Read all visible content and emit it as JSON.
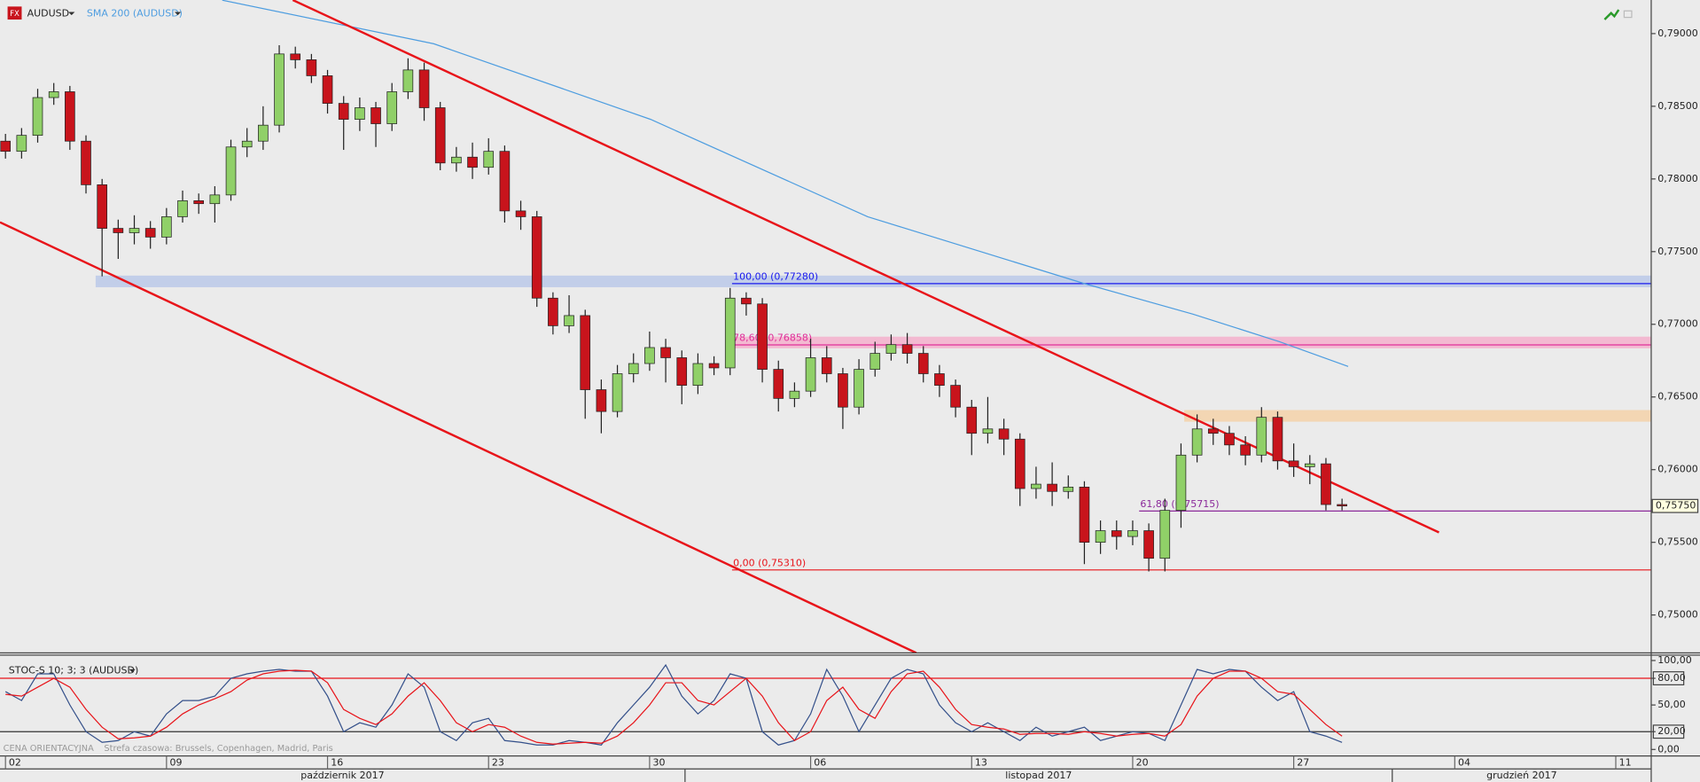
{
  "chart_data": [
    {
      "type": "candlestick",
      "title": "AUDUSD",
      "icon_text": "FX",
      "xlim": [
        -0.17,
        51.1
      ],
      "ylim": [
        0.74739,
        0.79231
      ],
      "yticks": [
        {
          "value": 0.75,
          "label": "0,75000"
        },
        {
          "value": 0.755,
          "label": "0,75500"
        },
        {
          "value": 0.76,
          "label": "0,76000"
        },
        {
          "value": 0.765,
          "label": "0,76500"
        },
        {
          "value": 0.77,
          "label": "0,77000"
        },
        {
          "value": 0.775,
          "label": "0,77500"
        },
        {
          "value": 0.78,
          "label": "0,78000"
        },
        {
          "value": 0.785,
          "label": "0,78500"
        },
        {
          "value": 0.79,
          "label": "0,79000"
        }
      ],
      "xticks": [
        {
          "value": 0,
          "label": "02"
        },
        {
          "value": 5,
          "label": "09"
        },
        {
          "value": 10,
          "label": "16"
        },
        {
          "value": 15,
          "label": "23"
        },
        {
          "value": 20,
          "label": "30"
        },
        {
          "value": 25,
          "label": "06"
        },
        {
          "value": 30,
          "label": "13"
        },
        {
          "value": 35,
          "label": "20"
        },
        {
          "value": 40,
          "label": "27"
        },
        {
          "value": 45,
          "label": "04"
        },
        {
          "value": 50,
          "label": "11"
        }
      ],
      "months": [
        {
          "label": "październik 2017",
          "start": -0.17,
          "end": 21.1
        },
        {
          "label": "listopad 2017",
          "start": 21.1,
          "end": 43.06
        },
        {
          "label": "grudzień 2017",
          "start": 43.06,
          "end": 51.1
        }
      ],
      "up_color": "#90d068",
      "down_color": "#c8141c",
      "x": [
        0,
        0.5,
        1,
        1.5,
        2,
        2.5,
        3,
        3.5,
        4,
        4.5,
        5,
        5.5,
        6,
        6.5,
        7,
        7.5,
        8,
        8.5,
        9,
        9.5,
        10,
        10.5,
        11,
        11.5,
        12,
        12.5,
        13,
        13.5,
        14,
        14.5,
        15,
        15.5,
        16,
        16.5,
        17,
        17.5,
        18,
        18.5,
        19,
        19.5,
        20,
        20.5,
        21,
        21.5,
        22,
        22.5,
        23,
        23.5,
        24,
        24.5,
        25,
        25.5,
        26,
        26.5,
        27,
        27.5,
        28,
        28.5,
        29,
        29.5,
        30,
        30.5,
        31,
        31.5,
        32,
        32.5,
        33,
        33.5,
        34,
        34.5,
        35,
        35.5,
        36,
        36.5,
        37,
        37.5,
        38,
        38.5,
        39,
        39.5,
        40,
        40.5,
        41,
        41.5
      ],
      "open": [
        0.7826,
        0.7819,
        0.783,
        0.7856,
        0.786,
        0.7826,
        0.7796,
        0.7766,
        0.7763,
        0.7766,
        0.776,
        0.7774,
        0.7785,
        0.7783,
        0.7789,
        0.7822,
        0.7826,
        0.7837,
        0.7886,
        0.7882,
        0.7871,
        0.7852,
        0.7841,
        0.7849,
        0.7838,
        0.786,
        0.7875,
        0.7849,
        0.7811,
        0.7815,
        0.7808,
        0.7819,
        0.7778,
        0.7774,
        0.7718,
        0.7699,
        0.7706,
        0.7655,
        0.764,
        0.7666,
        0.7673,
        0.7684,
        0.7677,
        0.7658,
        0.7673,
        0.767,
        0.7718,
        0.7714,
        0.7669,
        0.7649,
        0.7654,
        0.7677,
        0.7666,
        0.7643,
        0.7669,
        0.768,
        0.7686,
        0.768,
        0.7666,
        0.7658,
        0.7643,
        0.7625,
        0.7628,
        0.7621,
        0.7587,
        0.759,
        0.7585,
        0.7588,
        0.755,
        0.7558,
        0.7554,
        0.7558,
        0.7539,
        0.7572,
        0.761,
        0.7628,
        0.7625,
        0.7617,
        0.761,
        0.7636,
        0.7606,
        0.7602,
        0.7604,
        0.7576
      ],
      "high": [
        0.7831,
        0.7835,
        0.7862,
        0.7866,
        0.7864,
        0.783,
        0.78,
        0.7772,
        0.7775,
        0.7771,
        0.778,
        0.7792,
        0.779,
        0.7795,
        0.7827,
        0.7835,
        0.785,
        0.7892,
        0.7891,
        0.7886,
        0.7875,
        0.7857,
        0.7856,
        0.7853,
        0.7866,
        0.7883,
        0.788,
        0.7853,
        0.7822,
        0.7825,
        0.7828,
        0.7823,
        0.7785,
        0.7778,
        0.7722,
        0.772,
        0.771,
        0.7662,
        0.7672,
        0.768,
        0.7695,
        0.769,
        0.7682,
        0.768,
        0.7678,
        0.7725,
        0.7722,
        0.7718,
        0.7675,
        0.766,
        0.769,
        0.7685,
        0.767,
        0.7676,
        0.7688,
        0.7693,
        0.7694,
        0.7685,
        0.7672,
        0.7662,
        0.7648,
        0.765,
        0.7635,
        0.7625,
        0.7602,
        0.7605,
        0.7596,
        0.7592,
        0.7565,
        0.7565,
        0.7565,
        0.7563,
        0.758,
        0.7618,
        0.7638,
        0.7635,
        0.763,
        0.7623,
        0.7643,
        0.764,
        0.7618,
        0.761,
        0.7608,
        0.758
      ],
      "low": [
        0.7814,
        0.7814,
        0.7825,
        0.7851,
        0.782,
        0.779,
        0.7733,
        0.7745,
        0.7755,
        0.7752,
        0.7755,
        0.777,
        0.7776,
        0.777,
        0.7785,
        0.7815,
        0.782,
        0.7832,
        0.7876,
        0.7866,
        0.7845,
        0.782,
        0.7833,
        0.7822,
        0.7833,
        0.7855,
        0.784,
        0.7806,
        0.7805,
        0.78,
        0.7803,
        0.777,
        0.7765,
        0.7712,
        0.7693,
        0.7694,
        0.7635,
        0.7625,
        0.7636,
        0.766,
        0.7668,
        0.766,
        0.7645,
        0.7652,
        0.7665,
        0.7665,
        0.7706,
        0.766,
        0.764,
        0.7643,
        0.765,
        0.766,
        0.7628,
        0.7638,
        0.7664,
        0.7675,
        0.7673,
        0.766,
        0.765,
        0.7636,
        0.761,
        0.7618,
        0.761,
        0.7575,
        0.758,
        0.7575,
        0.758,
        0.7535,
        0.7542,
        0.7545,
        0.7548,
        0.753,
        0.753,
        0.756,
        0.7605,
        0.7617,
        0.761,
        0.7603,
        0.7605,
        0.76,
        0.7595,
        0.759,
        0.7572,
        0.7572
      ],
      "close": [
        0.7819,
        0.783,
        0.7856,
        0.786,
        0.7826,
        0.7796,
        0.7766,
        0.7763,
        0.7766,
        0.776,
        0.7774,
        0.7785,
        0.7783,
        0.7789,
        0.7822,
        0.7826,
        0.7837,
        0.7886,
        0.7882,
        0.7871,
        0.7852,
        0.7841,
        0.7849,
        0.7838,
        0.786,
        0.7875,
        0.7849,
        0.7811,
        0.7815,
        0.7808,
        0.7819,
        0.7778,
        0.7774,
        0.7718,
        0.7699,
        0.7706,
        0.7655,
        0.764,
        0.7666,
        0.7673,
        0.7684,
        0.7677,
        0.7658,
        0.7673,
        0.767,
        0.7718,
        0.7714,
        0.7669,
        0.7649,
        0.7654,
        0.7677,
        0.7666,
        0.7643,
        0.7669,
        0.768,
        0.7686,
        0.768,
        0.7666,
        0.7658,
        0.7643,
        0.7625,
        0.7628,
        0.7621,
        0.7587,
        0.759,
        0.7585,
        0.7588,
        0.755,
        0.7558,
        0.7554,
        0.7558,
        0.7539,
        0.7572,
        0.761,
        0.7628,
        0.7625,
        0.7617,
        0.761,
        0.7636,
        0.7606,
        0.7602,
        0.7604,
        0.7576,
        0.7575
      ],
      "sma": {
        "name": "SMA 200 (AUDUSD)",
        "color": "#4d9de0",
        "x": [
          6.73,
          13.3,
          20.03,
          26.77,
          33.5,
          36.87,
          39.56,
          41.69
        ],
        "values": [
          0.7923,
          0.7893,
          0.7841,
          0.7774,
          0.7728,
          0.7707,
          0.7688,
          0.7671
        ]
      },
      "trend_lines": [
        {
          "color": "#e8141a",
          "x": [
            8.92,
            44.51
          ],
          "y": [
            0.79231,
            0.75568
          ]
        },
        {
          "color": "#e8141a",
          "x": [
            -0.17,
            28.28
          ],
          "y": [
            0.77702,
            0.74739
          ]
        }
      ],
      "zones": [
        {
          "color": "#b4c4e8",
          "x_start": 2.8,
          "range": [
            0.77255,
            0.77335
          ]
        },
        {
          "color": "#f5a8c8",
          "x_start": 22.4,
          "range": [
            0.76835,
            0.76915
          ]
        },
        {
          "color": "#f5cfa0",
          "x_start": 36.6,
          "range": [
            0.7633,
            0.7641
          ]
        }
      ],
      "levels": [
        {
          "label": "100,00 (0,77280)",
          "value": 0.7728,
          "color": "#1a1aee",
          "x_start": 22.56
        },
        {
          "label": "78,60 (0,76858)",
          "value": 0.76858,
          "color": "#e0309a",
          "x_start": 22.56
        },
        {
          "label": "61,80 (0,75715)",
          "value": 0.75715,
          "color": "#8b2a9a",
          "x_start": 35.2
        },
        {
          "label": "0,00 (0,75310)",
          "value": 0.7531,
          "color": "#e8141a",
          "x_start": 22.56
        }
      ],
      "last_price": {
        "value": 0.7575,
        "label": "0,75750"
      },
      "notice": "CENA ORIENTACYJNA",
      "timezone": "Strefa czasowa: Brussels, Copenhagen, Madrid, Paris"
    },
    {
      "type": "line",
      "title": "STOC-S 10; 3; 3 (AUDUSD)",
      "xlim": [
        -0.17,
        51.1
      ],
      "ylim": [
        -7.3,
        106.1
      ],
      "yticks": [
        {
          "value": 100,
          "label": "100,00"
        },
        {
          "value": 80,
          "label": "80,00"
        },
        {
          "value": 50,
          "label": "50,00"
        },
        {
          "value": 20,
          "label": "20,00"
        },
        {
          "value": 0,
          "label": "0,00"
        }
      ],
      "levels": [
        {
          "value": 80,
          "color": "#e8141a"
        },
        {
          "value": 20,
          "color": "#333333"
        }
      ],
      "x": [
        0,
        0.5,
        1,
        1.5,
        2,
        2.5,
        3,
        3.5,
        4,
        4.5,
        5,
        5.5,
        6,
        6.5,
        7,
        7.5,
        8,
        8.5,
        9,
        9.5,
        10,
        10.5,
        11,
        11.5,
        12,
        12.5,
        13,
        13.5,
        14,
        14.5,
        15,
        15.5,
        16,
        16.5,
        17,
        17.5,
        18,
        18.5,
        19,
        19.5,
        20,
        20.5,
        21,
        21.5,
        22,
        22.5,
        23,
        23.5,
        24,
        24.5,
        25,
        25.5,
        26,
        26.5,
        27,
        27.5,
        28,
        28.5,
        29,
        29.5,
        30,
        30.5,
        31,
        31.5,
        32,
        32.5,
        33,
        33.5,
        34,
        34.5,
        35,
        35.5,
        36,
        36.5,
        37,
        37.5,
        38,
        38.5,
        39,
        39.5,
        40,
        40.5,
        41,
        41.5
      ],
      "series": [
        {
          "color": "#34508a",
          "values": [
            65,
            55,
            85,
            85,
            50,
            20,
            8,
            10,
            20,
            15,
            40,
            55,
            55,
            60,
            80,
            85,
            88,
            90,
            88,
            88,
            60,
            20,
            30,
            25,
            50,
            85,
            70,
            20,
            10,
            30,
            35,
            10,
            8,
            5,
            5,
            10,
            8,
            5,
            30,
            50,
            70,
            95,
            60,
            40,
            55,
            85,
            80,
            20,
            5,
            10,
            40,
            90,
            60,
            20,
            50,
            80,
            90,
            85,
            50,
            30,
            20,
            30,
            20,
            10,
            25,
            15,
            20,
            25,
            10,
            15,
            20,
            18,
            10,
            50,
            90,
            85,
            90,
            88,
            70,
            55,
            65,
            20,
            15,
            8
          ]
        },
        {
          "color": "#e8141a",
          "values": [
            62,
            60,
            70,
            80,
            70,
            45,
            25,
            12,
            13,
            15,
            25,
            40,
            50,
            57,
            65,
            78,
            85,
            88,
            89,
            88,
            75,
            45,
            35,
            28,
            40,
            60,
            75,
            55,
            30,
            20,
            28,
            25,
            15,
            8,
            6,
            7,
            8,
            7,
            15,
            30,
            50,
            75,
            75,
            55,
            50,
            65,
            80,
            60,
            30,
            10,
            20,
            55,
            70,
            45,
            35,
            65,
            85,
            88,
            70,
            45,
            28,
            25,
            23,
            17,
            18,
            18,
            17,
            20,
            18,
            15,
            17,
            18,
            15,
            28,
            60,
            80,
            88,
            88,
            80,
            65,
            62,
            45,
            28,
            15
          ]
        }
      ]
    }
  ]
}
